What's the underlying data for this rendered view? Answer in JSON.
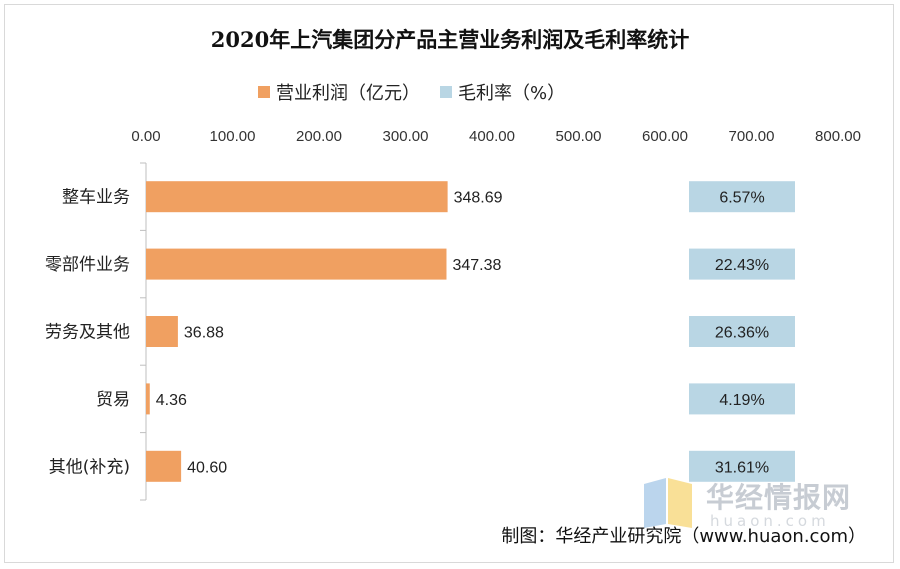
{
  "title": "2020年上汽集团分产品主营业务利润及毛利率统计",
  "legend": {
    "items": [
      {
        "label": "营业利润（亿元）",
        "color": "#F0A061"
      },
      {
        "label": "毛利率（%）",
        "color": "#B9D6E4"
      }
    ]
  },
  "footer": "制图：华经产业研究院（www.huaon.com）",
  "watermark": {
    "text": "华经情报网",
    "sub": "huaon.com"
  },
  "chart_data": {
    "type": "bar",
    "orientation": "horizontal",
    "categories": [
      "整车业务",
      "零部件业务",
      "劳务及其他",
      "贸易",
      "其他(补充)"
    ],
    "series": [
      {
        "name": "营业利润（亿元）",
        "values": [
          348.69,
          347.38,
          36.88,
          4.36,
          40.6
        ],
        "color": "#F0A061",
        "labels": [
          "348.69",
          "347.38",
          "36.88",
          "4.36",
          "40.60"
        ]
      },
      {
        "name": "毛利率（%）",
        "values": [
          6.57,
          22.43,
          26.36,
          4.19,
          31.61
        ],
        "color": "#B9D6E4",
        "labels": [
          "6.57%",
          "22.43%",
          "26.36%",
          "4.19%",
          "31.61%"
        ]
      }
    ],
    "xlim": [
      0,
      800
    ],
    "x_ticks": [
      "0.00",
      "100.00",
      "200.00",
      "300.00",
      "400.00",
      "500.00",
      "600.00",
      "700.00",
      "800.00"
    ],
    "x_tick_position": "top",
    "grid": false,
    "legend_position": "top"
  }
}
